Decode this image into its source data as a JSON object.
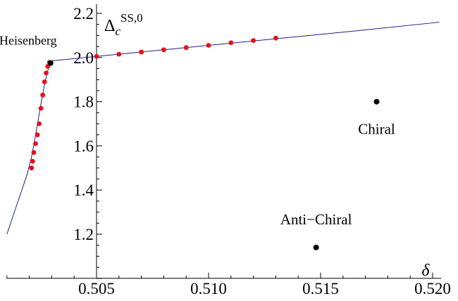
{
  "chart_data": {
    "type": "scatter",
    "title": "",
    "xlabel": "δ",
    "ylabel": {
      "base": "Δ",
      "sub": "c",
      "sup": "SS,0"
    },
    "xlim": [
      0.501,
      0.5203
    ],
    "ylim": [
      1.0,
      2.2
    ],
    "x_ticks": [
      0.505,
      0.51,
      0.515,
      0.52
    ],
    "x_tick_labels": [
      "0.505",
      "0.510",
      "0.515",
      "0.520"
    ],
    "y_ticks": [
      1.2,
      1.4,
      1.6,
      1.8,
      2.0,
      2.2
    ],
    "y_tick_labels": [
      "1.2",
      "1.4",
      "1.6",
      "1.8",
      "2.0",
      "2.2"
    ],
    "x_axis_at_y": 1.0,
    "y_axis_at_x": 0.505,
    "grid": false,
    "curve": {
      "color": "#1e1e8c",
      "x": [
        0.501,
        0.5015,
        0.5019,
        0.5021,
        0.5023,
        0.5025,
        0.5027,
        0.5029,
        0.503,
        0.505,
        0.508,
        0.511,
        0.514,
        0.517,
        0.5203
      ],
      "y": [
        1.2,
        1.35,
        1.47,
        1.55,
        1.66,
        1.78,
        1.89,
        1.97,
        1.985,
        2.005,
        2.035,
        2.065,
        2.095,
        2.125,
        2.16
      ]
    },
    "series": [
      {
        "color": "#e8101a",
        "x": [
          0.5021,
          0.50215,
          0.5022,
          0.50228,
          0.50236,
          0.50244,
          0.50252,
          0.5026,
          0.50268,
          0.50275,
          0.50282,
          0.5029,
          0.505,
          0.506,
          0.507,
          0.508,
          0.509,
          0.51,
          0.511,
          0.512,
          0.513
        ],
        "y": [
          1.5,
          1.53,
          1.57,
          1.61,
          1.65,
          1.7,
          1.77,
          1.83,
          1.89,
          1.93,
          1.96,
          1.978,
          2.005,
          2.015,
          2.025,
          2.035,
          2.045,
          2.055,
          2.067,
          2.077,
          2.088
        ]
      },
      {
        "color": "#000000",
        "x": [
          0.50295,
          0.5175,
          0.5148
        ],
        "y": [
          1.975,
          1.8,
          1.14
        ]
      }
    ],
    "annotations": [
      {
        "text": "Heisenberg",
        "x": 0.50295,
        "y": 1.975
      },
      {
        "text": "Chiral",
        "x": 0.5175,
        "y": 1.8
      },
      {
        "text": "Anti−Chiral",
        "x": 0.5148,
        "y": 1.14
      }
    ]
  }
}
